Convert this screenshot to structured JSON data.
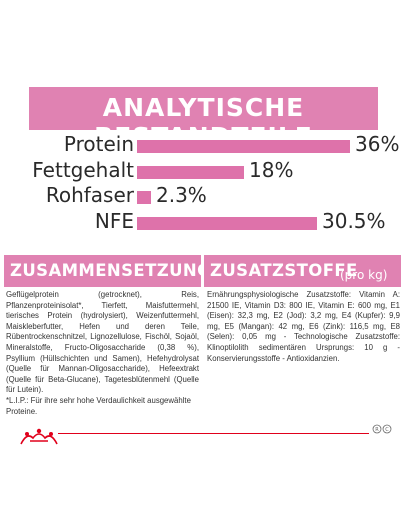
{
  "analysis": {
    "title": "ANALYTISCHE BESTANDTEILE",
    "accent": "#e082b2",
    "bar_color": "#de72aa",
    "rows": [
      {
        "label": "Protein",
        "value": "36%",
        "amount": 36
      },
      {
        "label": "Fettgehalt",
        "value": "18%",
        "amount": 18
      },
      {
        "label": "Rohfaser",
        "value": "2.3%",
        "amount": 2.3
      },
      {
        "label": "NFE",
        "value": "30.5%",
        "amount": 30.5
      }
    ]
  },
  "composition": {
    "title": "ZUSAMMENSETZUNG",
    "text": "Geflügelprotein (getrocknet), Reis, Pflanzenproteinisolat*, Tierfett, Maisfuttermehl, tierisches Protein (hydrolysiert), Weizenfuttermehl, Maiskleberfutter, Hefen und deren Teile, Rübentrockenschnitzel, Lignozellulose, Fischöl, Sojaöl, Mineralstoffe, Fructo-Oligosaccharide (0,38 %), Psyllium (Hüllschichten und Samen), Hefehydrolysat (Quelle für Mannan-Oligosaccharide), Hefeextrakt (Quelle für Beta-Glucane), Tagetesblütenmehl (Quelle für Lutein).",
    "note": "*L.I.P.: Für ihre sehr hohe Verdaulichkeit ausgewählte Proteine."
  },
  "additives": {
    "title": "ZUSATZSTOFFE",
    "subtitle": "(pro kg)",
    "text": "Ernährungsphysiologische Zusatzstoffe: Vitamin A: 21500 IE, Vitamin D3: 800 IE, Vitamin E: 600 mg, E1 (Eisen): 32,3 mg, E2 (Jod): 3,2 mg, E4 (Kupfer): 9,9 mg, E5 (Mangan): 42 mg, E6 (Zink): 116,5 mg, E8 (Selen): 0,05 mg - Technologische Zusatzstoffe: Klinoptilolith sedimentären Ursprungs: 10 g - Konservierungsstoffe - Antioxidanzien."
  },
  "brand": {
    "logo_icon": "royal-canin-crown-logo",
    "line_color": "#e0001b",
    "registered_mark": "R",
    "ch_mark": "C"
  }
}
